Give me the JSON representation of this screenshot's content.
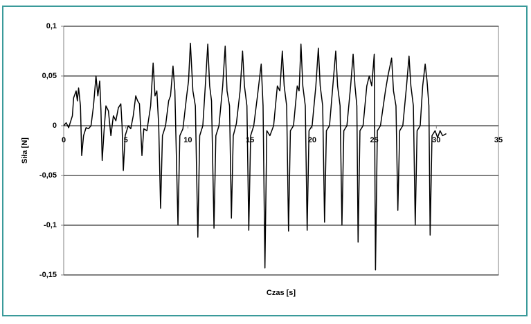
{
  "chart_data": {
    "type": "line",
    "x_label": "Czas [s]",
    "y_label": "Siła [N]",
    "color": "#000000",
    "xlim": [
      0,
      35
    ],
    "xticks": [
      0,
      5,
      10,
      15,
      20,
      25,
      30,
      35
    ],
    "ylim": [
      -0.15,
      0.1
    ],
    "yticks": [
      {
        "value": 0.1,
        "label": "0,1"
      },
      {
        "value": 0.05,
        "label": "0,05"
      },
      0,
      {
        "value": -0.05,
        "label": "-0,05"
      },
      {
        "value": -0.1,
        "label": "-0,1"
      },
      {
        "value": -0.15,
        "label": "-0,15"
      }
    ],
    "grid": true,
    "x": [
      0,
      0.2,
      0.4,
      0.5,
      0.7,
      0.8,
      1.0,
      1.1,
      1.2,
      1.35,
      1.45,
      1.6,
      1.8,
      2.0,
      2.2,
      2.4,
      2.6,
      2.75,
      2.9,
      3.0,
      3.1,
      3.25,
      3.4,
      3.6,
      3.8,
      4.0,
      4.2,
      4.4,
      4.6,
      4.7,
      4.8,
      4.95,
      5.2,
      5.4,
      5.6,
      5.8,
      5.95,
      6.1,
      6.3,
      6.45,
      6.7,
      7.0,
      7.2,
      7.35,
      7.5,
      7.65,
      7.8,
      7.95,
      8.2,
      8.45,
      8.6,
      8.8,
      8.95,
      9.2,
      9.35,
      9.6,
      9.9,
      10.05,
      10.2,
      10.4,
      10.6,
      10.8,
      10.95,
      11.2,
      11.4,
      11.6,
      11.75,
      11.9,
      12.1,
      12.25,
      12.5,
      12.8,
      13.0,
      13.15,
      13.35,
      13.5,
      13.65,
      13.9,
      14.2,
      14.4,
      14.55,
      14.75,
      14.9,
      15.05,
      15.3,
      15.6,
      15.9,
      16.05,
      16.2,
      16.35,
      16.6,
      16.9,
      17.2,
      17.4,
      17.6,
      17.75,
      17.95,
      18.1,
      18.25,
      18.5,
      18.8,
      18.95,
      19.1,
      19.25,
      19.45,
      19.6,
      19.75,
      20.0,
      20.3,
      20.5,
      20.65,
      20.85,
      21.0,
      21.15,
      21.4,
      21.7,
      21.9,
      22.05,
      22.25,
      22.4,
      22.55,
      22.8,
      23.1,
      23.3,
      23.45,
      23.6,
      23.7,
      23.85,
      24.1,
      24.4,
      24.6,
      24.8,
      25.0,
      25.1,
      25.25,
      25.5,
      25.9,
      26.1,
      26.4,
      26.55,
      26.75,
      26.9,
      27.05,
      27.3,
      27.6,
      27.8,
      27.95,
      28.15,
      28.3,
      28.45,
      28.7,
      28.9,
      29.1,
      29.25,
      29.4,
      29.5,
      29.65,
      29.9,
      30.1,
      30.3,
      30.5,
      30.8
    ],
    "values": [
      0,
      0.003,
      -0.002,
      0.002,
      0.01,
      0.028,
      0.035,
      0.025,
      0.038,
      0.02,
      -0.03,
      -0.01,
      -0.002,
      -0.003,
      0.0,
      0.02,
      0.05,
      0.03,
      0.045,
      0.015,
      -0.035,
      -0.005,
      0.02,
      0.015,
      -0.01,
      0.01,
      0.005,
      0.018,
      0.022,
      0.0,
      -0.045,
      -0.01,
      0.0,
      -0.003,
      0.01,
      0.03,
      0.025,
      0.022,
      -0.03,
      -0.003,
      -0.005,
      0.02,
      0.063,
      0.03,
      0.035,
      0.0,
      -0.083,
      -0.01,
      0.0,
      0.025,
      0.03,
      0.06,
      0.035,
      -0.1,
      -0.01,
      -0.003,
      0.03,
      0.045,
      0.083,
      0.035,
      0.02,
      -0.112,
      -0.01,
      0.0,
      0.04,
      0.082,
      0.04,
      0.025,
      -0.103,
      -0.01,
      0.0,
      0.04,
      0.08,
      0.035,
      0.02,
      -0.093,
      -0.01,
      0.002,
      0.035,
      0.075,
      0.04,
      0.02,
      -0.105,
      -0.01,
      0.0,
      0.03,
      0.062,
      0.02,
      -0.143,
      -0.005,
      -0.01,
      0.0,
      0.04,
      0.035,
      0.075,
      0.04,
      0.02,
      -0.106,
      -0.005,
      0.0,
      0.04,
      0.035,
      0.082,
      0.04,
      0.02,
      -0.105,
      -0.005,
      0.0,
      0.04,
      0.078,
      0.04,
      0.02,
      -0.097,
      -0.005,
      0.0,
      0.045,
      0.075,
      0.04,
      0.02,
      -0.1,
      -0.005,
      0.0,
      0.04,
      0.072,
      0.04,
      0.02,
      -0.117,
      -0.005,
      0.0,
      0.04,
      0.05,
      0.04,
      0.072,
      -0.145,
      -0.005,
      0.0,
      0.035,
      0.05,
      0.068,
      0.035,
      0.02,
      -0.085,
      -0.005,
      0.0,
      0.04,
      0.07,
      0.04,
      0.02,
      -0.1,
      -0.005,
      0.0,
      0.04,
      0.062,
      0.045,
      0.02,
      -0.11,
      -0.01,
      -0.005,
      -0.012,
      -0.005,
      -0.01,
      -0.008
    ]
  }
}
